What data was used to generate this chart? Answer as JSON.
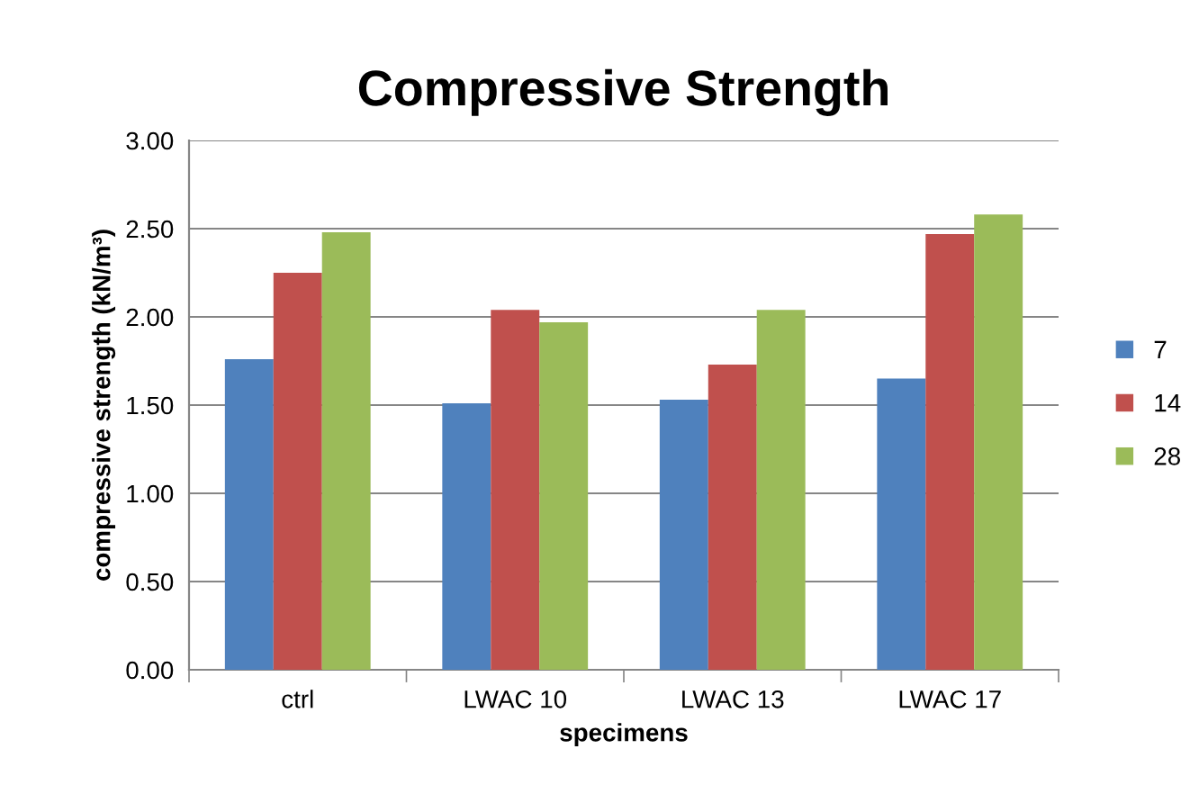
{
  "chart_data": {
    "type": "bar",
    "title": "Compressive Strength",
    "xlabel": "specimens",
    "ylabel": "compressive strength (kN/m³)",
    "categories": [
      "ctrl",
      "LWAC 10",
      "LWAC 13",
      "LWAC 17"
    ],
    "series": [
      {
        "name": "7",
        "color": "#4f81bd",
        "values": [
          1.76,
          1.51,
          1.53,
          1.65
        ]
      },
      {
        "name": "14",
        "color": "#c0504d",
        "values": [
          2.25,
          2.04,
          1.73,
          2.47
        ]
      },
      {
        "name": "28",
        "color": "#9bbb59",
        "values": [
          2.48,
          1.97,
          2.04,
          2.58
        ]
      }
    ],
    "ylim": [
      0,
      3
    ],
    "yticks": [
      {
        "value": 0,
        "label": "0.00"
      },
      {
        "value": 0.5,
        "label": "0.50"
      },
      {
        "value": 1,
        "label": "1.00"
      },
      {
        "value": 1.5,
        "label": "1.50"
      },
      {
        "value": 2,
        "label": "2.00"
      },
      {
        "value": 2.5,
        "label": "2.50"
      },
      {
        "value": 3,
        "label": "3.00"
      }
    ],
    "grid": "y",
    "legend": "right"
  }
}
